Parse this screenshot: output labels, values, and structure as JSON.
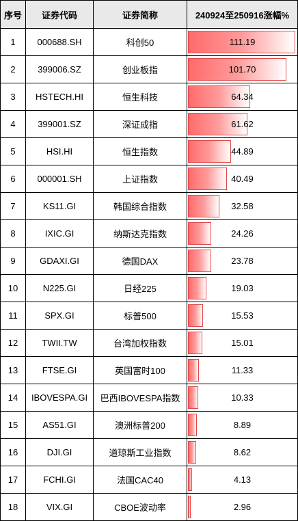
{
  "headers": {
    "idx": "序号",
    "code": "证券代码",
    "name": "证券简称",
    "chg": "240924至250916涨幅%"
  },
  "colors": {
    "bar_fill": "#ff6b6b",
    "bar_border": "#e04848",
    "header_bg": "#e9e9e9"
  },
  "chart_data": {
    "type": "table",
    "title": "",
    "columns": [
      "序号",
      "证券代码",
      "证券简称",
      "240924至250916涨幅%"
    ],
    "max_value": 111.19,
    "rows": [
      {
        "idx": "1",
        "code": "000688.SH",
        "name": "科创50",
        "value": 111.19,
        "display": "111.19"
      },
      {
        "idx": "2",
        "code": "399006.SZ",
        "name": "创业板指",
        "value": 101.7,
        "display": "101.70"
      },
      {
        "idx": "3",
        "code": "HSTECH.HI",
        "name": "恒生科技",
        "value": 64.34,
        "display": "64.34"
      },
      {
        "idx": "4",
        "code": "399001.SZ",
        "name": "深证成指",
        "value": 61.62,
        "display": "61.62"
      },
      {
        "idx": "5",
        "code": "HSI.HI",
        "name": "恒生指数",
        "value": 44.89,
        "display": "44.89"
      },
      {
        "idx": "6",
        "code": "000001.SH",
        "name": "上证指数",
        "value": 40.49,
        "display": "40.49"
      },
      {
        "idx": "7",
        "code": "KS11.GI",
        "name": "韩国综合指数",
        "value": 32.58,
        "display": "32.58"
      },
      {
        "idx": "8",
        "code": "IXIC.GI",
        "name": "纳斯达克指数",
        "value": 24.26,
        "display": "24.26"
      },
      {
        "idx": "9",
        "code": "GDAXI.GI",
        "name": "德国DAX",
        "value": 23.78,
        "display": "23.78"
      },
      {
        "idx": "10",
        "code": "N225.GI",
        "name": "日经225",
        "value": 19.03,
        "display": "19.03"
      },
      {
        "idx": "11",
        "code": "SPX.GI",
        "name": "标普500",
        "value": 15.53,
        "display": "15.53"
      },
      {
        "idx": "12",
        "code": "TWII.TW",
        "name": "台湾加权指数",
        "value": 15.01,
        "display": "15.01"
      },
      {
        "idx": "13",
        "code": "FTSE.GI",
        "name": "英国富时100",
        "value": 11.33,
        "display": "11.33"
      },
      {
        "idx": "14",
        "code": "IBOVESPA.GI",
        "name": "巴西IBOVESPA指数",
        "value": 10.33,
        "display": "10.33"
      },
      {
        "idx": "15",
        "code": "AS51.GI",
        "name": "澳洲标普200",
        "value": 8.89,
        "display": "8.89"
      },
      {
        "idx": "16",
        "code": "DJI.GI",
        "name": "道琼斯工业指数",
        "value": 8.62,
        "display": "8.62"
      },
      {
        "idx": "17",
        "code": "FCHI.GI",
        "name": "法国CAC40",
        "value": 4.13,
        "display": "4.13"
      },
      {
        "idx": "18",
        "code": "VIX.GI",
        "name": "CBOE波动率",
        "value": 2.96,
        "display": "2.96"
      }
    ]
  }
}
